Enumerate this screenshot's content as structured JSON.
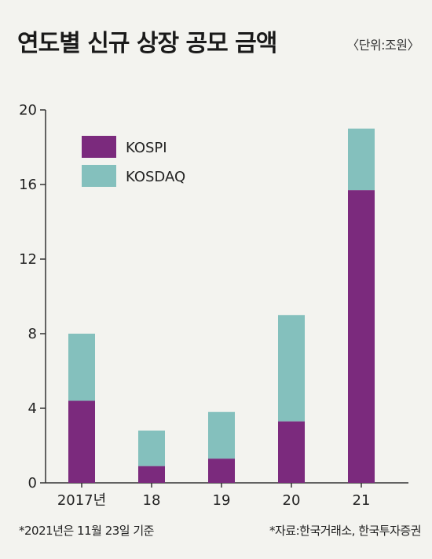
{
  "title": "연도별 신규 상장 공모 금액",
  "unit": "〈단위:조원〉",
  "footnote": "*2021년은 11월 23일 기준",
  "source": "*자료:한국거래소, 한국투자증권",
  "colors": {
    "kospi": "#7b2a7d",
    "kosdaq": "#84c0bd",
    "axis": "#333333"
  },
  "chart_data": {
    "type": "bar",
    "stacked": true,
    "categories": [
      "2017년",
      "18",
      "19",
      "20",
      "21"
    ],
    "series": [
      {
        "name": "KOSPI",
        "values": [
          4.4,
          0.9,
          1.3,
          3.3,
          15.7
        ]
      },
      {
        "name": "KOSDAQ",
        "values": [
          3.6,
          1.9,
          2.5,
          5.7,
          3.3
        ]
      }
    ],
    "yticks": [
      "0",
      "4",
      "8",
      "12",
      "16",
      "20"
    ],
    "ylim": [
      0,
      20
    ],
    "legend_position": "top-left",
    "grid": false
  }
}
